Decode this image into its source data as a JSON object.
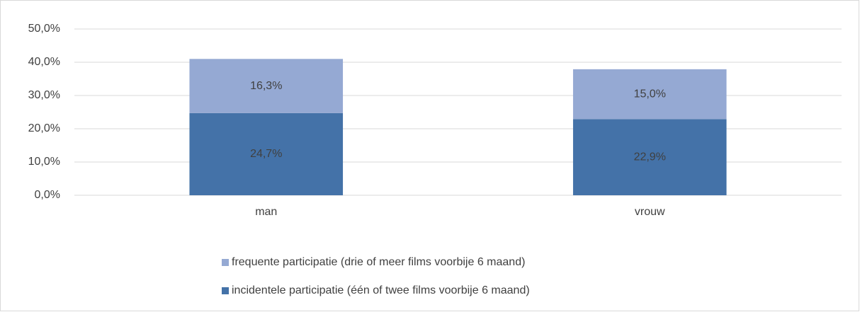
{
  "chart_data": {
    "type": "stacked_bar",
    "categories": [
      "man",
      "vrouw"
    ],
    "series": [
      {
        "name": "incidentele participatie (één of twee films voorbije 6 maand)",
        "color": "#4472a8",
        "values": [
          24.7,
          22.9
        ],
        "value_labels": [
          "24,7%",
          "22,9%"
        ]
      },
      {
        "name": "frequente participatie (drie of meer films voorbije 6 maand)",
        "color": "#95a9d3",
        "values": [
          16.3,
          15.0
        ],
        "value_labels": [
          "16,3%",
          "15,0%"
        ]
      }
    ],
    "ylim": [
      0,
      50
    ],
    "yticks": [
      {
        "value": 0,
        "label": "0,0%"
      },
      {
        "value": 10,
        "label": "10,0%"
      },
      {
        "value": 20,
        "label": "20,0%"
      },
      {
        "value": 30,
        "label": "30,0%"
      },
      {
        "value": 40,
        "label": "40,0%"
      },
      {
        "value": 50,
        "label": "50,0%"
      }
    ],
    "grid": true,
    "legend": "bottom"
  }
}
